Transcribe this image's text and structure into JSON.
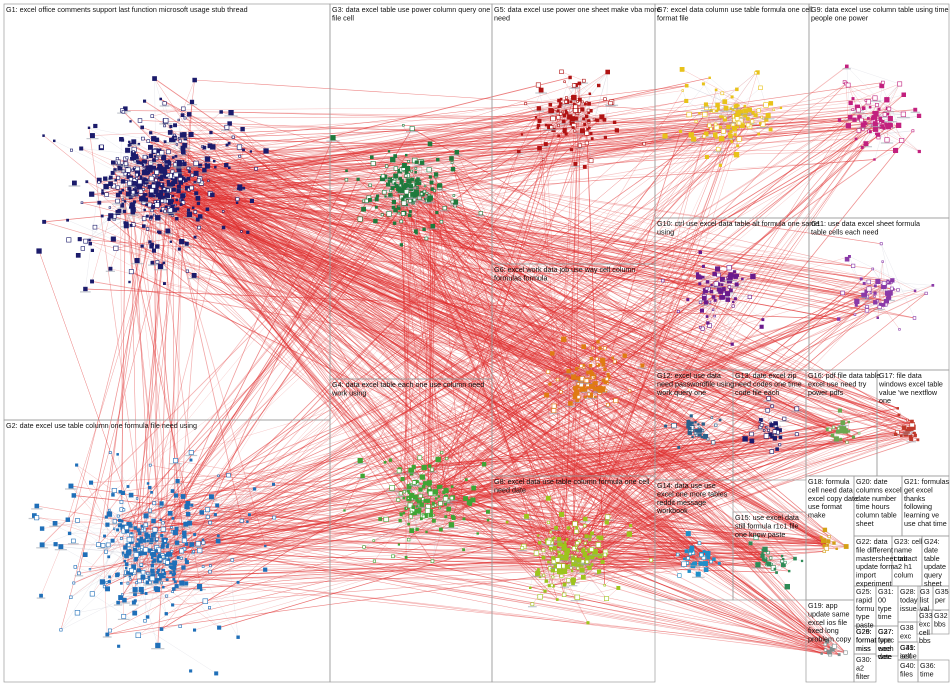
{
  "groups": [
    {
      "id": "G1",
      "lines": [
        "G1: excel office comments support last function microsoft usage stub thread"
      ],
      "color": "#1b1b6b"
    },
    {
      "id": "G2",
      "lines": [
        "G2: date excel use table column one formula file need using"
      ],
      "color": "#1f6fb8"
    },
    {
      "id": "G3",
      "lines": [
        "G3: data excel table use power column query one",
        "file cell"
      ],
      "color": "#1e7a3c"
    },
    {
      "id": "G4",
      "lines": [
        "G4: data excel table each one use column need",
        "work using"
      ],
      "color": "#3fa535"
    },
    {
      "id": "G5",
      "lines": [
        "G5: data excel use power one sheet make vba more",
        "need"
      ],
      "color": "#b01313"
    },
    {
      "id": "G6",
      "lines": [
        "G6: excel work data job use way cell column",
        "formulas formula"
      ],
      "color": "#e07b12"
    },
    {
      "id": "G7",
      "lines": [
        "G7: excel data column use table formula one cell",
        "format file"
      ],
      "color": "#e8c21a"
    },
    {
      "id": "G8",
      "lines": [
        "G8: excel data use table column formula one cell",
        "need date"
      ],
      "color": "#9dc41c"
    },
    {
      "id": "G9",
      "lines": [
        "G9: data excel use column table using time",
        "people one power"
      ],
      "color": "#c2207e"
    },
    {
      "id": "G10",
      "lines": [
        "G10: ctrl use excel data table alt formula one same",
        "using"
      ],
      "color": "#6a1b8c"
    },
    {
      "id": "G11",
      "lines": [
        "G11: use data excel sheet formula",
        "table cells each need"
      ],
      "color": "#8a3aa8"
    },
    {
      "id": "G12",
      "lines": [
        "G12: excel use data",
        "need passwordfile using",
        "work query one"
      ],
      "color": "#2a5f8a"
    },
    {
      "id": "G13",
      "lines": [
        "G13: date excel zip",
        "need codes one time",
        "code file each"
      ],
      "color": "#1b1b6b"
    },
    {
      "id": "G14",
      "lines": [
        "G14: data use use",
        "excel one more tables",
        "reddit message",
        "workbook"
      ],
      "color": "#1f8fc9"
    },
    {
      "id": "G15",
      "lines": [
        "G15: use excel data",
        "still formula r1c1 file",
        "one know paste"
      ],
      "color": "#2e8b57"
    },
    {
      "id": "G16",
      "lines": [
        "G16: pdf file data table",
        "excel use need try",
        "power pdfs"
      ],
      "color": "#6aa84f"
    },
    {
      "id": "G17",
      "lines": [
        "G17: file data",
        "windows excel table",
        "value 'we nextflow",
        "one"
      ],
      "color": "#c0392b"
    },
    {
      "id": "G18",
      "lines": [
        "G18: formula",
        "cell need data",
        "excel copy date",
        "use format",
        "make"
      ],
      "color": "#d4a017"
    },
    {
      "id": "G19",
      "lines": [
        "G19: app",
        "update same",
        "excel ios file",
        "fixed long",
        "problem copy"
      ],
      "color": "#7f8c8d"
    },
    {
      "id": "G20",
      "lines": [
        "G20: date",
        "columns excel",
        "date number",
        "time hours",
        "column table",
        "sheet"
      ],
      "color": "#555555"
    },
    {
      "id": "G21",
      "lines": [
        "G21: formulas",
        "get excel",
        "thanks",
        "following",
        "learning ve",
        "use chat time"
      ],
      "color": "#555555"
    },
    {
      "id": "G22",
      "lines": [
        "G22: data",
        "file different",
        "mastersheet tab",
        "update form",
        "import",
        "experiment"
      ],
      "color": "#555555"
    },
    {
      "id": "G23",
      "lines": [
        "G23: cell",
        "name",
        "contact",
        "a2 h1",
        "colum"
      ],
      "color": "#555555"
    },
    {
      "id": "G24",
      "lines": [
        "G24:",
        "date",
        "table",
        "update",
        "query",
        "sheet"
      ],
      "color": "#555555"
    },
    {
      "id": "G25",
      "lines": [
        "G25:",
        "rapid",
        "formu",
        "type",
        "paste"
      ],
      "color": "#555555"
    },
    {
      "id": "G26",
      "lines": [
        "G26:",
        "format",
        "miss"
      ],
      "color": "#555555"
    },
    {
      "id": "G27",
      "lines": [
        "G27:",
        "type",
        "wee",
        "wee"
      ],
      "color": "#555555"
    },
    {
      "id": "G28",
      "lines": [
        "G28:",
        "today",
        "issue"
      ],
      "color": "#555555"
    },
    {
      "id": "G29",
      "lines": [
        "G29:",
        "format",
        "miss"
      ],
      "color": "#555555"
    },
    {
      "id": "G30",
      "lines": [
        "G30:",
        "a2",
        "filter"
      ],
      "color": "#555555"
    },
    {
      "id": "G31",
      "lines": [
        "G31:",
        "00",
        "type",
        "time"
      ],
      "color": "#555555"
    },
    {
      "id": "G32",
      "lines": [
        "G32",
        "bbs"
      ],
      "color": "#555555"
    },
    {
      "id": "G33",
      "lines": [
        "G33",
        "exc",
        "cell",
        "bbs"
      ],
      "color": "#555555"
    },
    {
      "id": "G34",
      "lines": [
        "G3",
        "list",
        "val"
      ],
      "color": "#555555"
    },
    {
      "id": "G35",
      "lines": [
        "G35",
        "per",
        "..."
      ],
      "color": "#555555"
    },
    {
      "id": "G36",
      "lines": [
        "G36:",
        "time"
      ],
      "color": "#555555"
    },
    {
      "id": "G37",
      "lines": [
        "G37:",
        "forec",
        "each",
        "date"
      ],
      "color": "#555555"
    },
    {
      "id": "G38",
      "lines": [
        "G38",
        "exc"
      ],
      "color": "#555555"
    },
    {
      "id": "G39",
      "lines": [
        "G39:",
        "issue"
      ],
      "color": "#555555"
    },
    {
      "id": "G40",
      "lines": [
        "G40:",
        "files"
      ],
      "color": "#555555"
    },
    {
      "id": "G41",
      "lines": [
        "G41:",
        "self"
      ],
      "color": "#555555"
    }
  ],
  "edge_color": "#e03030"
}
